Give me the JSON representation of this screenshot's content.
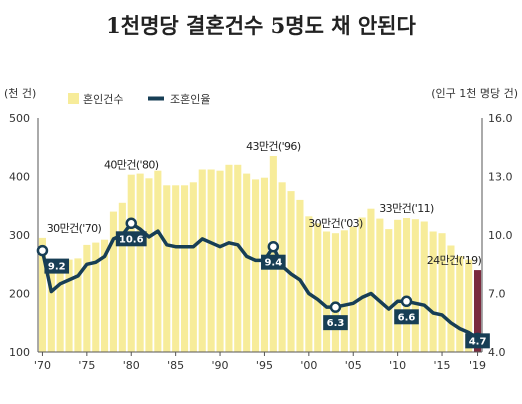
{
  "title": "1천명당 결혼건수 5명도 채 안된다",
  "chart_data": {
    "type": "bar+line",
    "left_axis_unit": "(천 건)",
    "right_axis_unit": "(인구 1천 명당 건)",
    "left_ticks": [
      100,
      200,
      300,
      400,
      500
    ],
    "right_ticks": [
      "4.0",
      "7.0",
      "10.0",
      "13.0",
      "16.0"
    ],
    "left_ylim": [
      100,
      500
    ],
    "right_ylim": [
      4.0,
      16.0
    ],
    "x_ticks": [
      "'70",
      "'75",
      "'80",
      "'85",
      "'90",
      "'95",
      "'00",
      "'05",
      "'10",
      "'15",
      "'19"
    ],
    "x_tick_years": [
      1970,
      1975,
      1980,
      1985,
      1990,
      1995,
      2000,
      2005,
      2010,
      2015,
      2019
    ],
    "legend": [
      "혼인건수",
      "조혼인율"
    ],
    "colors": {
      "bar": "#f7ec9a",
      "bar_last": "#7a2a3e",
      "line": "#173e55",
      "marker_text": "#ffffff"
    },
    "years": [
      1970,
      1971,
      1972,
      1973,
      1974,
      1975,
      1976,
      1977,
      1978,
      1979,
      1980,
      1981,
      1982,
      1983,
      1984,
      1985,
      1986,
      1987,
      1988,
      1989,
      1990,
      1991,
      1992,
      1993,
      1994,
      1995,
      1996,
      1997,
      1998,
      1999,
      2000,
      2001,
      2002,
      2003,
      2004,
      2005,
      2006,
      2007,
      2008,
      2009,
      2010,
      2011,
      2012,
      2013,
      2014,
      2015,
      2016,
      2017,
      2018,
      2019
    ],
    "marriages": [
      295,
      240,
      245,
      258,
      260,
      283,
      287,
      292,
      340,
      355,
      403,
      405,
      397,
      410,
      385,
      385,
      385,
      390,
      412,
      412,
      410,
      420,
      420,
      405,
      395,
      398,
      435,
      390,
      375,
      360,
      332,
      320,
      306,
      303,
      308,
      314,
      330,
      345,
      328,
      310,
      326,
      329,
      327,
      323,
      306,
      303,
      282,
      264,
      258,
      240
    ],
    "crude_rate": [
      9.2,
      7.1,
      7.5,
      7.7,
      7.9,
      8.5,
      8.6,
      8.9,
      9.8,
      10.0,
      10.6,
      10.3,
      9.9,
      10.2,
      9.5,
      9.4,
      9.4,
      9.4,
      9.8,
      9.6,
      9.4,
      9.6,
      9.5,
      8.9,
      8.7,
      8.7,
      9.4,
      8.4,
      8.0,
      7.7,
      7.0,
      6.7,
      6.3,
      6.3,
      6.4,
      6.5,
      6.8,
      7.0,
      6.6,
      6.2,
      6.6,
      6.6,
      6.5,
      6.4,
      6.0,
      5.9,
      5.5,
      5.2,
      5.0,
      4.7
    ],
    "bar_annotations": [
      {
        "year": 1970,
        "text": "30만건('70)"
      },
      {
        "year": 1980,
        "text": "40만건('80)"
      },
      {
        "year": 1996,
        "text": "43만건('96)"
      },
      {
        "year": 2003,
        "text": "30만건('03)"
      },
      {
        "year": 2011,
        "text": "33만건('11)"
      },
      {
        "year": 2019,
        "text": "24만건('19)"
      }
    ],
    "rate_markers": [
      {
        "year": 1970,
        "text": "9.2"
      },
      {
        "year": 1980,
        "text": "10.6"
      },
      {
        "year": 1996,
        "text": "9.4"
      },
      {
        "year": 2003,
        "text": "6.3"
      },
      {
        "year": 2011,
        "text": "6.6"
      },
      {
        "year": 2019,
        "text": "4.7"
      }
    ]
  }
}
